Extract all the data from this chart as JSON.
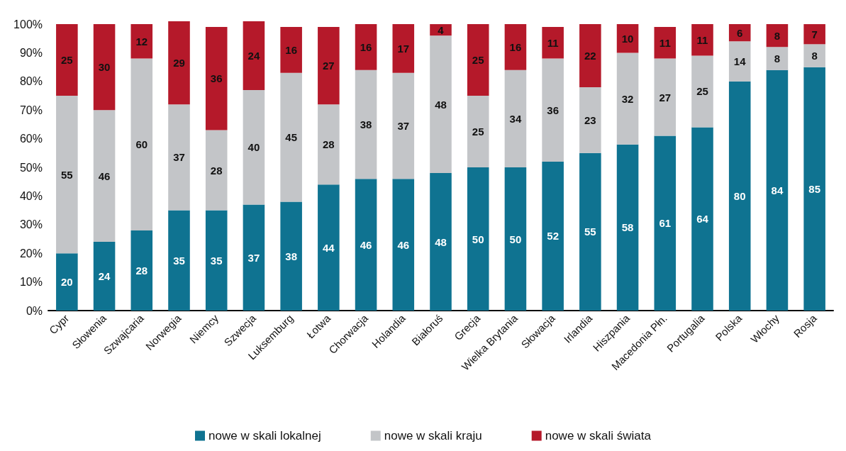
{
  "chart_data": {
    "type": "bar",
    "stacked": true,
    "data_labels": true,
    "legend": "bottom",
    "grid": false,
    "categories": [
      "Cypr",
      "Słowenia",
      "Szwajcaria",
      "Norwegia",
      "Niemcy",
      "Szwecja",
      "Luksemburg",
      "Łotwa",
      "Chorwacja",
      "Holandia",
      "Białoruś",
      "Grecja",
      "Wielka Brytania",
      "Słowacja",
      "Irlandia",
      "Hiszpania",
      "Macedonia Płn.",
      "Portugalia",
      "Polska",
      "Włochy",
      "Rosja"
    ],
    "series": [
      {
        "name": "nowe w skali lokalnej",
        "color": "#0f7391",
        "values": [
          20,
          24,
          28,
          35,
          35,
          37,
          38,
          44,
          46,
          46,
          48,
          50,
          50,
          52,
          55,
          58,
          61,
          64,
          80,
          84,
          85
        ]
      },
      {
        "name": "nowe w skali kraju",
        "color": "#c3c5c8",
        "values": [
          55,
          46,
          60,
          37,
          28,
          40,
          45,
          28,
          38,
          37,
          48,
          25,
          34,
          36,
          23,
          32,
          27,
          25,
          14,
          8,
          8
        ]
      },
      {
        "name": "nowe w skali świata",
        "color": "#b5192a",
        "values": [
          25,
          30,
          12,
          29,
          36,
          24,
          16,
          27,
          16,
          17,
          4,
          25,
          16,
          11,
          22,
          10,
          11,
          11,
          6,
          8,
          7
        ]
      }
    ],
    "ylim": [
      0,
      101
    ],
    "yticks": [
      {
        "value": 0,
        "label": "0%"
      },
      {
        "value": 10,
        "label": "10%"
      },
      {
        "value": 20,
        "label": "20%"
      },
      {
        "value": 30,
        "label": "30%"
      },
      {
        "value": 40,
        "label": "40%"
      },
      {
        "value": 50,
        "label": "50%"
      },
      {
        "value": 60,
        "label": "60%"
      },
      {
        "value": 70,
        "label": "70%"
      },
      {
        "value": 80,
        "label": "80%"
      },
      {
        "value": 90,
        "label": "90%"
      },
      {
        "value": 100,
        "label": "100%"
      }
    ]
  }
}
